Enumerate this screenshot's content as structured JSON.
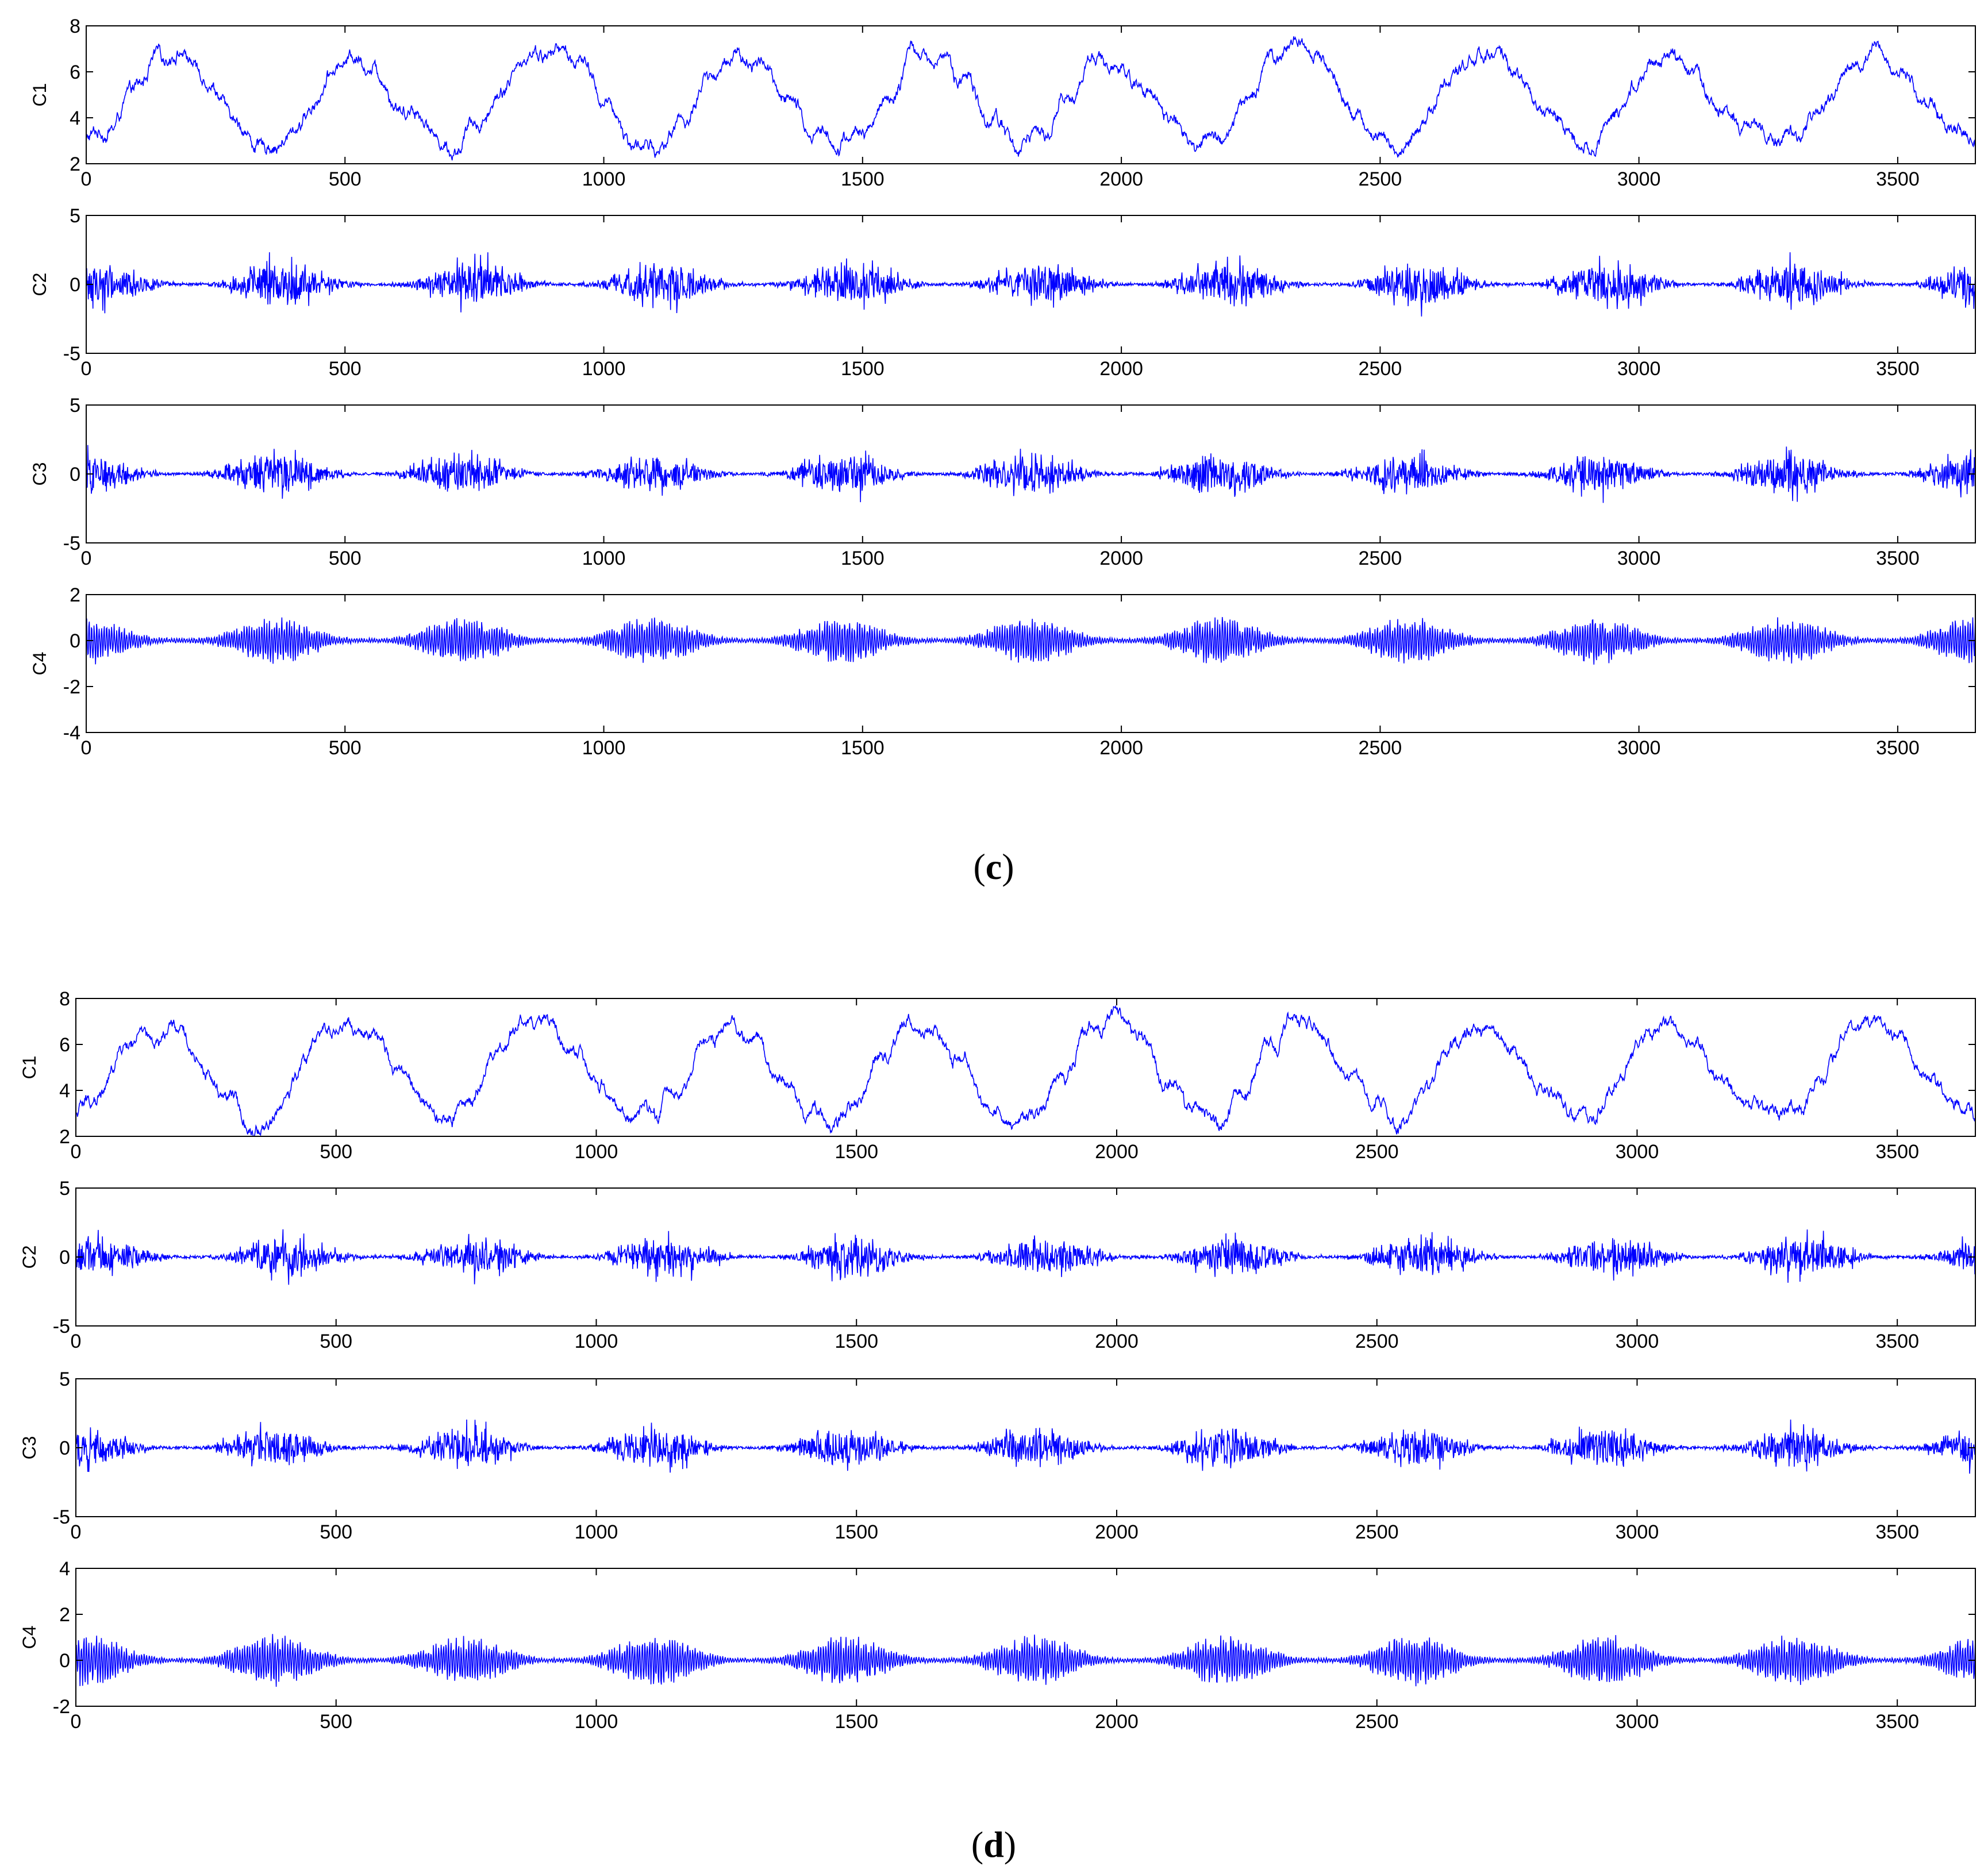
{
  "captions": {
    "c": "c",
    "d": "d"
  },
  "colors": {
    "line": "#0000ff",
    "axis": "#000000",
    "background": "#ffffff"
  },
  "chart_data": [
    {
      "group": "c",
      "type": "line",
      "xlim": [
        0,
        3650
      ],
      "xticks": [
        0,
        500,
        1000,
        1500,
        2000,
        2500,
        3000,
        3500
      ],
      "panels": [
        {
          "ylabel": "C1",
          "ylim": [
            2,
            8
          ],
          "yticks": [
            2,
            4,
            6,
            8
          ],
          "kind": "smooth",
          "period": 370,
          "phase": 0.05,
          "center": 4.9,
          "amplitude": 2.1,
          "knots": [
            [
              0,
              3.0
            ],
            [
              50,
              3.6
            ],
            [
              100,
              5.5
            ],
            [
              150,
              6.8
            ],
            [
              200,
              6.6
            ],
            [
              250,
              5.2
            ],
            [
              300,
              3.4
            ],
            [
              350,
              2.6
            ],
            [
              400,
              3.3
            ],
            [
              450,
              5.0
            ],
            [
              500,
              6.6
            ],
            [
              550,
              6.3
            ],
            [
              600,
              4.6
            ],
            [
              650,
              4.0
            ],
            [
              700,
              2.5
            ],
            [
              750,
              3.6
            ],
            [
              800,
              5.0
            ],
            [
              850,
              6.7
            ],
            [
              900,
              6.9
            ],
            [
              950,
              6.6
            ],
            [
              1000,
              4.8
            ],
            [
              1050,
              3.0
            ],
            [
              1100,
              2.6
            ],
            [
              1150,
              3.8
            ],
            [
              1200,
              5.6
            ],
            [
              1250,
              6.7
            ],
            [
              1300,
              6.4
            ],
            [
              1350,
              4.8
            ],
            [
              1400,
              3.5
            ],
            [
              1450,
              3.0
            ],
            [
              1500,
              3.3
            ],
            [
              1550,
              4.8
            ],
            [
              1600,
              6.8
            ],
            [
              1650,
              6.6
            ],
            [
              1700,
              5.5
            ],
            [
              1750,
              3.9
            ],
            [
              1800,
              2.9
            ],
            [
              1850,
              3.3
            ],
            [
              1900,
              4.9
            ],
            [
              1950,
              6.7
            ],
            [
              2000,
              6.0
            ],
            [
              2050,
              5.3
            ],
            [
              2100,
              3.8
            ],
            [
              2150,
              2.8
            ],
            [
              2200,
              3.3
            ],
            [
              2250,
              5.0
            ],
            [
              2300,
              6.8
            ],
            [
              2350,
              7.3
            ],
            [
              2400,
              6.2
            ],
            [
              2450,
              4.1
            ],
            [
              2500,
              3.2
            ],
            [
              2550,
              2.7
            ],
            [
              2600,
              4.6
            ],
            [
              2650,
              6.2
            ],
            [
              2700,
              6.8
            ],
            [
              2750,
              6.3
            ],
            [
              2800,
              4.8
            ],
            [
              2850,
              3.7
            ],
            [
              2900,
              2.7
            ],
            [
              2950,
              4.0
            ],
            [
              3000,
              5.8
            ],
            [
              3050,
              7.0
            ],
            [
              3100,
              6.2
            ],
            [
              3150,
              4.5
            ],
            [
              3200,
              3.8
            ],
            [
              3250,
              3.2
            ],
            [
              3300,
              3.0
            ],
            [
              3350,
              4.2
            ],
            [
              3400,
              6.0
            ],
            [
              3450,
              6.8
            ],
            [
              3500,
              6.1
            ],
            [
              3550,
              4.8
            ],
            [
              3600,
              3.8
            ],
            [
              3650,
              3.0
            ]
          ]
        },
        {
          "ylabel": "C2",
          "ylim": [
            -5,
            5
          ],
          "yticks": [
            -5,
            0,
            5
          ],
          "kind": "burst",
          "period": 365,
          "phase": 0.45,
          "amplitude": 1.1,
          "peak": 3.2
        },
        {
          "ylabel": "C3",
          "ylim": [
            -5,
            5
          ],
          "yticks": [
            -5,
            0,
            5
          ],
          "kind": "burst",
          "period": 365,
          "phase": 0.5,
          "amplitude": 1.0,
          "peak": 3.4
        },
        {
          "ylabel": "C4",
          "ylim": [
            -4,
            2
          ],
          "yticks": [
            -4,
            -2,
            0,
            2
          ],
          "kind": "osc",
          "period": 365,
          "phase": 0.5,
          "amplitude": 0.7,
          "peak": 2.2
        }
      ]
    },
    {
      "group": "d",
      "type": "line",
      "xlim": [
        0,
        3650
      ],
      "xticks": [
        0,
        500,
        1000,
        1500,
        2000,
        2500,
        3000,
        3500
      ],
      "panels": [
        {
          "ylabel": "C1",
          "ylim": [
            2,
            8
          ],
          "yticks": [
            2,
            4,
            6,
            8
          ],
          "kind": "smooth",
          "period": 370,
          "phase": 0.0,
          "center": 4.9,
          "amplitude": 2.1,
          "knots": [
            [
              0,
              3.0
            ],
            [
              50,
              3.9
            ],
            [
              100,
              6.2
            ],
            [
              150,
              6.1
            ],
            [
              200,
              6.6
            ],
            [
              250,
              4.8
            ],
            [
              300,
              3.5
            ],
            [
              350,
              2.2
            ],
            [
              400,
              3.5
            ],
            [
              450,
              5.8
            ],
            [
              500,
              6.8
            ],
            [
              550,
              6.5
            ],
            [
              600,
              5.6
            ],
            [
              650,
              4.0
            ],
            [
              700,
              2.6
            ],
            [
              750,
              3.3
            ],
            [
              800,
              5.4
            ],
            [
              850,
              6.9
            ],
            [
              900,
              7.0
            ],
            [
              950,
              5.8
            ],
            [
              1000,
              4.3
            ],
            [
              1050,
              3.0
            ],
            [
              1100,
              3.0
            ],
            [
              1150,
              3.8
            ],
            [
              1200,
              5.8
            ],
            [
              1250,
              6.8
            ],
            [
              1300,
              6.3
            ],
            [
              1350,
              4.8
            ],
            [
              1400,
              3.2
            ],
            [
              1450,
              2.7
            ],
            [
              1500,
              3.6
            ],
            [
              1550,
              5.5
            ],
            [
              1600,
              6.9
            ],
            [
              1650,
              6.6
            ],
            [
              1700,
              5.4
            ],
            [
              1750,
              3.4
            ],
            [
              1800,
              2.7
            ],
            [
              1850,
              3.2
            ],
            [
              1900,
              4.6
            ],
            [
              1950,
              6.8
            ],
            [
              2000,
              7.1
            ],
            [
              2050,
              6.2
            ],
            [
              2100,
              4.2
            ],
            [
              2150,
              3.2
            ],
            [
              2200,
              2.6
            ],
            [
              2250,
              4.2
            ],
            [
              2300,
              6.2
            ],
            [
              2350,
              7.2
            ],
            [
              2400,
              6.1
            ],
            [
              2450,
              4.5
            ],
            [
              2500,
              3.3
            ],
            [
              2550,
              2.6
            ],
            [
              2600,
              4.1
            ],
            [
              2650,
              6.2
            ],
            [
              2700,
              6.7
            ],
            [
              2750,
              6.0
            ],
            [
              2800,
              4.4
            ],
            [
              2850,
              3.5
            ],
            [
              2900,
              2.7
            ],
            [
              2950,
              3.9
            ],
            [
              3000,
              5.8
            ],
            [
              3050,
              6.9
            ],
            [
              3100,
              6.5
            ],
            [
              3150,
              4.7
            ],
            [
              3200,
              3.6
            ],
            [
              3250,
              3.0
            ],
            [
              3300,
              3.0
            ],
            [
              3350,
              4.3
            ],
            [
              3400,
              6.5
            ],
            [
              3450,
              6.9
            ],
            [
              3500,
              6.4
            ],
            [
              3550,
              4.8
            ],
            [
              3600,
              3.7
            ],
            [
              3650,
              2.8
            ]
          ]
        },
        {
          "ylabel": "C2",
          "ylim": [
            -5,
            5
          ],
          "yticks": [
            -5,
            0,
            5
          ],
          "kind": "burst",
          "period": 365,
          "phase": 0.4,
          "amplitude": 1.0,
          "peak": 3.0
        },
        {
          "ylabel": "C3",
          "ylim": [
            -5,
            5
          ],
          "yticks": [
            -5,
            0,
            5
          ],
          "kind": "burst",
          "period": 365,
          "phase": 0.45,
          "amplitude": 1.0,
          "peak": 3.0
        },
        {
          "ylabel": "C4",
          "ylim": [
            -2,
            4
          ],
          "yticks": [
            -2,
            0,
            2,
            4
          ],
          "kind": "osc",
          "period": 365,
          "phase": 0.45,
          "amplitude": 0.75,
          "peak": 2.1
        }
      ]
    }
  ]
}
